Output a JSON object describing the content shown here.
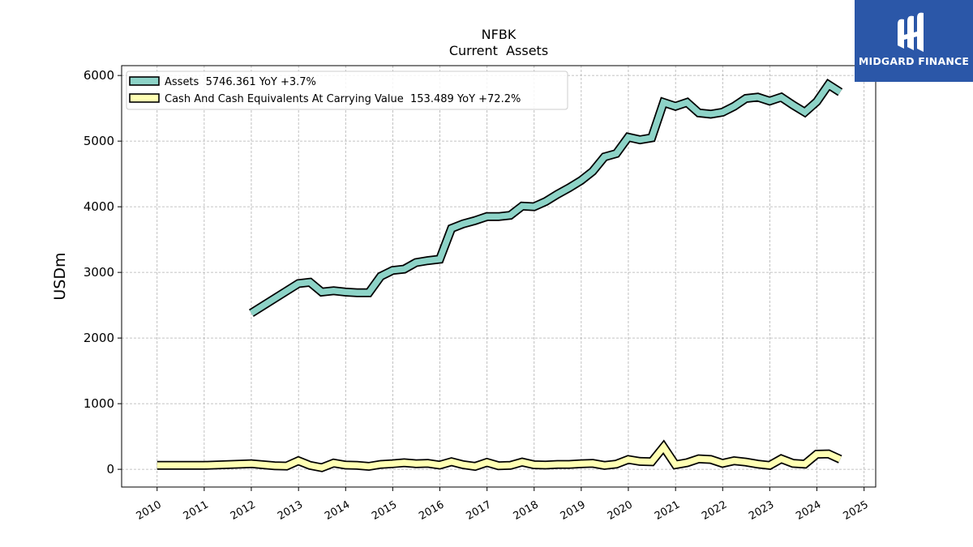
{
  "chart_data": {
    "type": "line",
    "title": "NFBK",
    "subtitle": "Current  Assets",
    "xlabel": "",
    "ylabel": "USDm",
    "xlim": [
      "2009-04-01",
      "2025-04-01"
    ],
    "ylim": [
      -270,
      6150
    ],
    "x_ticks": [
      "2010",
      "2011",
      "2012",
      "2013",
      "2014",
      "2015",
      "2016",
      "2017",
      "2018",
      "2019",
      "2020",
      "2021",
      "2022",
      "2023",
      "2024",
      "2025"
    ],
    "y_ticks": [
      0,
      1000,
      2000,
      3000,
      4000,
      5000,
      6000
    ],
    "grid": true,
    "legend_position": "top-left",
    "series": [
      {
        "name": "Assets",
        "legend_label": "Assets  5746.361 YoY +3.7%",
        "color": "#8dd3c7",
        "x": [
          "2012-01-01",
          "2012-12-31",
          "2013-03-31",
          "2013-06-30",
          "2013-09-30",
          "2013-12-31",
          "2014-03-31",
          "2014-06-30",
          "2014-09-30",
          "2014-12-31",
          "2015-03-31",
          "2015-06-30",
          "2015-09-30",
          "2015-12-31",
          "2016-03-31",
          "2016-06-30",
          "2016-09-30",
          "2016-12-31",
          "2017-03-31",
          "2017-06-30",
          "2017-09-30",
          "2017-12-31",
          "2018-03-31",
          "2018-06-30",
          "2018-09-30",
          "2018-12-31",
          "2019-03-31",
          "2019-06-30",
          "2019-09-30",
          "2019-12-31",
          "2020-03-31",
          "2020-06-30",
          "2020-09-30",
          "2020-12-31",
          "2021-03-31",
          "2021-06-30",
          "2021-09-30",
          "2021-12-31",
          "2022-03-31",
          "2022-06-30",
          "2022-09-30",
          "2022-12-31",
          "2023-03-31",
          "2023-06-30",
          "2023-09-30",
          "2023-12-31",
          "2024-03-31",
          "2024-06-30"
        ],
        "values": [
          2380,
          2830,
          2850,
          2700,
          2720,
          2700,
          2690,
          2690,
          2940,
          3030,
          3050,
          3150,
          3180,
          3200,
          3670,
          3740,
          3790,
          3850,
          3850,
          3870,
          4010,
          4000,
          4080,
          4190,
          4290,
          4400,
          4540,
          4760,
          4810,
          5060,
          5020,
          5050,
          5590,
          5530,
          5590,
          5430,
          5410,
          5440,
          5530,
          5650,
          5670,
          5610,
          5670,
          5550,
          5440,
          5600,
          5860,
          5746
        ]
      },
      {
        "name": "Cash And Cash Equivalents At Carrying Value",
        "legend_label": "Cash And Cash Equivalents At Carrying Value  153.489 YoY +72.2%",
        "color": "#ffffb3",
        "x": [
          "2010-01-01",
          "2011-01-01",
          "2012-01-01",
          "2012-03-31",
          "2012-06-30",
          "2012-09-30",
          "2012-12-31",
          "2013-03-31",
          "2013-06-30",
          "2013-09-30",
          "2013-12-31",
          "2014-03-31",
          "2014-06-30",
          "2014-09-30",
          "2014-12-31",
          "2015-03-31",
          "2015-06-30",
          "2015-09-30",
          "2015-12-31",
          "2016-03-31",
          "2016-06-30",
          "2016-09-30",
          "2016-12-31",
          "2017-03-31",
          "2017-06-30",
          "2017-09-30",
          "2017-12-31",
          "2018-03-31",
          "2018-06-30",
          "2018-09-30",
          "2018-12-31",
          "2019-03-31",
          "2019-06-30",
          "2019-09-30",
          "2019-12-31",
          "2020-03-31",
          "2020-06-30",
          "2020-09-30",
          "2020-12-31",
          "2021-03-31",
          "2021-06-30",
          "2021-09-30",
          "2021-12-31",
          "2022-03-31",
          "2022-06-30",
          "2022-09-30",
          "2022-12-31",
          "2023-03-31",
          "2023-06-30",
          "2023-09-30",
          "2023-12-31",
          "2024-03-31",
          "2024-06-30"
        ],
        "values": [
          60,
          60,
          85,
          70,
          55,
          50,
          130,
          60,
          25,
          95,
          65,
          60,
          45,
          75,
          85,
          100,
          85,
          90,
          65,
          115,
          70,
          45,
          105,
          55,
          60,
          110,
          70,
          65,
          75,
          75,
          85,
          90,
          60,
          80,
          150,
          120,
          115,
          340,
          70,
          100,
          160,
          150,
          90,
          130,
          110,
          80,
          60,
          160,
          90,
          80,
          230,
          235,
          153
        ]
      }
    ]
  },
  "logo": {
    "text": "MIDGARD FINANCE"
  }
}
